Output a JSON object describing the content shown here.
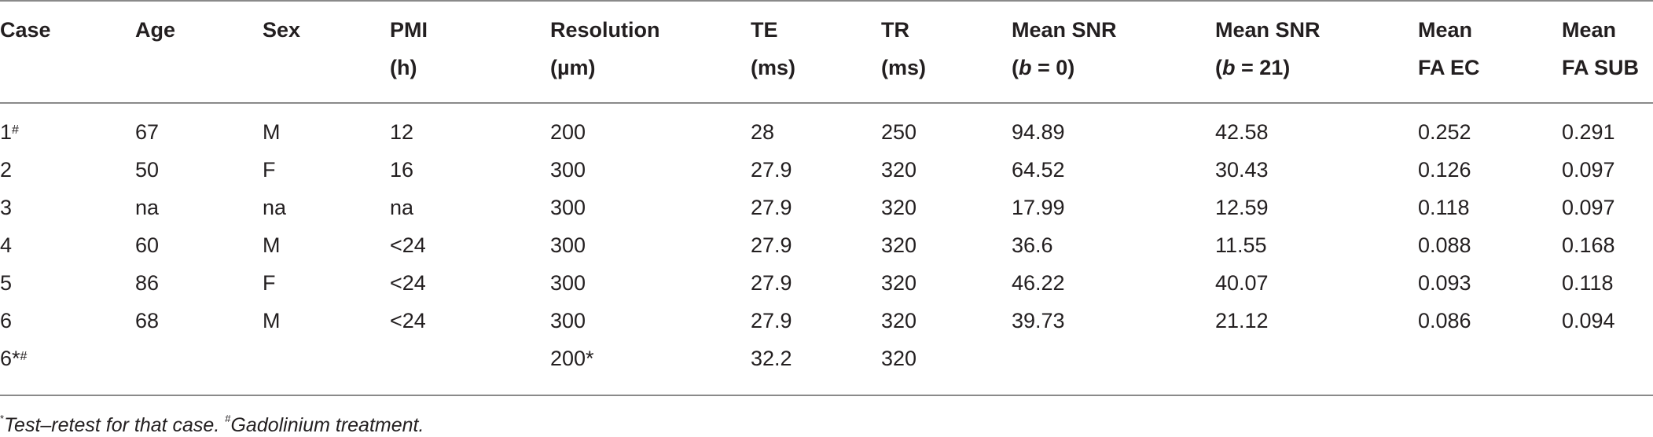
{
  "table": {
    "header": [
      [
        [
          "Case"
        ]
      ],
      [
        [
          "Age"
        ]
      ],
      [
        [
          "Sex"
        ]
      ],
      [
        [
          "PMI"
        ],
        [
          "(h)"
        ]
      ],
      [
        [
          "Resolution"
        ],
        [
          "(µm)"
        ]
      ],
      [
        [
          "TE"
        ],
        [
          "(ms)"
        ]
      ],
      [
        [
          "TR"
        ],
        [
          "(ms)"
        ]
      ],
      [
        [
          "Mean SNR"
        ],
        [
          "(",
          "b",
          " = 0)"
        ]
      ],
      [
        [
          "Mean SNR"
        ],
        [
          "(",
          "b",
          " = 21)"
        ]
      ],
      [
        [
          "Mean"
        ],
        [
          "FA EC"
        ]
      ],
      [
        [
          "Mean"
        ],
        [
          "FA SUB"
        ]
      ]
    ],
    "rows": [
      [
        {
          "text": "1",
          "sup": "#"
        },
        "67",
        "M",
        "12",
        "200",
        "28",
        "250",
        "94.89",
        "42.58",
        "0.252",
        "0.291"
      ],
      [
        "2",
        "50",
        "F",
        "16",
        "300",
        "27.9",
        "320",
        "64.52",
        "30.43",
        "0.126",
        "0.097"
      ],
      [
        "3",
        "na",
        "na",
        "na",
        "300",
        "27.9",
        "320",
        "17.99",
        "12.59",
        "0.118",
        "0.097"
      ],
      [
        "4",
        "60",
        "M",
        "<24",
        "300",
        "27.9",
        "320",
        "36.6",
        "11.55",
        "0.088",
        "0.168"
      ],
      [
        "5",
        "86",
        "F",
        "<24",
        "300",
        "27.9",
        "320",
        "46.22",
        "40.07",
        "0.093",
        "0.118"
      ],
      [
        "6",
        "68",
        "M",
        "<24",
        "300",
        "27.9",
        "320",
        "39.73",
        "21.12",
        "0.086",
        "0.094"
      ],
      [
        {
          "text": "6*",
          "sup": "#"
        },
        null,
        null,
        null,
        "200*",
        "32.2",
        "320"
      ]
    ],
    "footnote": [
      {
        "sup": "*",
        "text": "Test–retest for that case. "
      },
      {
        "sup": "#",
        "text": "Gadolinium treatment."
      }
    ]
  }
}
